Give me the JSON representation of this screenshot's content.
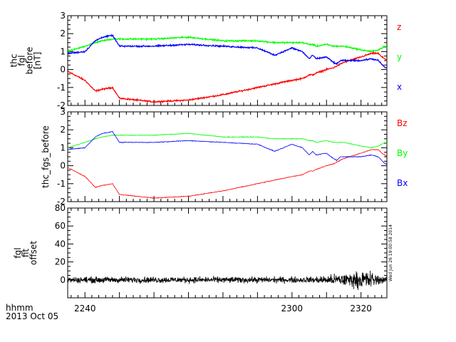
{
  "colors": {
    "x": "#0000ff",
    "y": "#00ff00",
    "z": "#ff0000",
    "black": "#000000"
  },
  "footer": {
    "label": "hhmm",
    "date": "2013 Oct 05"
  },
  "timestamp": "Wed Jun 26 19:00:58 2014",
  "chart_data": [
    {
      "type": "line",
      "panel": "fgl_before",
      "ylabel": [
        "thc",
        "fgl",
        "before",
        "[nT]"
      ],
      "ylim": [
        -2,
        3
      ],
      "yticks": [
        -2,
        -1,
        0,
        1,
        2,
        3
      ],
      "xlim": [
        2235,
        2327.5
      ],
      "xticks": [
        2240,
        2300,
        2320
      ],
      "x": [
        2235,
        2240,
        2243,
        2245,
        2248,
        2250,
        2260,
        2270,
        2280,
        2290,
        2295,
        2300,
        2303,
        2305,
        2306,
        2307,
        2310,
        2312,
        2313,
        2314,
        2315,
        2320,
        2323,
        2325,
        2326,
        2327,
        2327.5
      ],
      "series": [
        {
          "name": "z",
          "values": [
            -0.1,
            -0.6,
            -1.2,
            -1.1,
            -1.0,
            -1.6,
            -1.8,
            -1.7,
            -1.4,
            -1.0,
            -0.8,
            -0.6,
            -0.5,
            -0.3,
            -0.3,
            -0.2,
            0.0,
            0.1,
            0.2,
            0.3,
            0.4,
            0.7,
            0.9,
            0.9,
            0.7,
            0.6,
            0.5
          ]
        },
        {
          "name": "y",
          "values": [
            1.0,
            1.3,
            1.5,
            1.6,
            1.7,
            1.7,
            1.7,
            1.8,
            1.6,
            1.6,
            1.5,
            1.5,
            1.5,
            1.4,
            1.4,
            1.3,
            1.4,
            1.3,
            1.3,
            1.3,
            1.3,
            1.1,
            1.0,
            1.1,
            1.2,
            1.3,
            1.2
          ]
        },
        {
          "name": "x",
          "values": [
            0.9,
            1.0,
            1.6,
            1.8,
            1.9,
            1.3,
            1.3,
            1.4,
            1.3,
            1.2,
            0.8,
            1.2,
            1.0,
            0.6,
            0.8,
            0.6,
            0.7,
            0.4,
            0.3,
            0.5,
            0.5,
            0.5,
            0.6,
            0.5,
            0.3,
            0.1,
            0.1
          ]
        }
      ],
      "legend": [
        "z",
        "y",
        "x"
      ],
      "legend_placement": "right"
    },
    {
      "type": "line",
      "panel": "fgs_before",
      "ylabel": [
        "thc_fgs_before"
      ],
      "ylim": [
        -2,
        3
      ],
      "yticks": [
        -2,
        -1,
        0,
        1,
        2,
        3
      ],
      "xlim": [
        2235,
        2327.5
      ],
      "xticks": [
        2240,
        2300,
        2320
      ],
      "x": [
        2235,
        2240,
        2243,
        2245,
        2248,
        2250,
        2260,
        2270,
        2280,
        2290,
        2295,
        2300,
        2303,
        2305,
        2306,
        2307,
        2310,
        2312,
        2313,
        2314,
        2315,
        2320,
        2323,
        2325,
        2326,
        2327,
        2327.5
      ],
      "series": [
        {
          "name": "Bz",
          "values": [
            -0.1,
            -0.6,
            -1.2,
            -1.1,
            -1.0,
            -1.6,
            -1.8,
            -1.7,
            -1.4,
            -1.0,
            -0.8,
            -0.6,
            -0.5,
            -0.3,
            -0.3,
            -0.2,
            0.0,
            0.1,
            0.2,
            0.3,
            0.4,
            0.7,
            0.9,
            0.9,
            0.7,
            0.6,
            0.5
          ]
        },
        {
          "name": "By",
          "values": [
            1.0,
            1.3,
            1.5,
            1.6,
            1.7,
            1.7,
            1.7,
            1.8,
            1.6,
            1.6,
            1.5,
            1.5,
            1.5,
            1.4,
            1.4,
            1.3,
            1.4,
            1.3,
            1.3,
            1.3,
            1.3,
            1.1,
            1.0,
            1.1,
            1.2,
            1.3,
            1.2
          ]
        },
        {
          "name": "Bx",
          "values": [
            0.9,
            1.0,
            1.6,
            1.8,
            1.9,
            1.3,
            1.3,
            1.4,
            1.3,
            1.2,
            0.8,
            1.2,
            1.0,
            0.6,
            0.8,
            0.6,
            0.7,
            0.4,
            0.3,
            0.5,
            0.5,
            0.5,
            0.6,
            0.5,
            0.3,
            0.1,
            0.1
          ]
        }
      ],
      "legend": [
        "Bz",
        "By",
        "Bx"
      ],
      "legend_placement": "right"
    },
    {
      "type": "line",
      "panel": "fgl_fit_offset",
      "ylabel": [
        "fgl",
        "fit",
        "offset"
      ],
      "ylim": [
        -20,
        80
      ],
      "yticks": [
        0,
        20,
        40,
        60,
        80
      ],
      "xlim": [
        2235,
        2327.5
      ],
      "xticks": [
        2240,
        2300,
        2320
      ],
      "series": [
        {
          "name": "offset",
          "baseline": 0,
          "noise_envelope": {
            "x": [
              2235,
              2290,
              2305,
              2310,
              2314,
              2318,
              2322,
              2325,
              2327.5
            ],
            "amplitude": [
              5,
              5,
              5,
              7,
              10,
              12,
              16,
              8,
              4
            ]
          }
        }
      ]
    }
  ]
}
